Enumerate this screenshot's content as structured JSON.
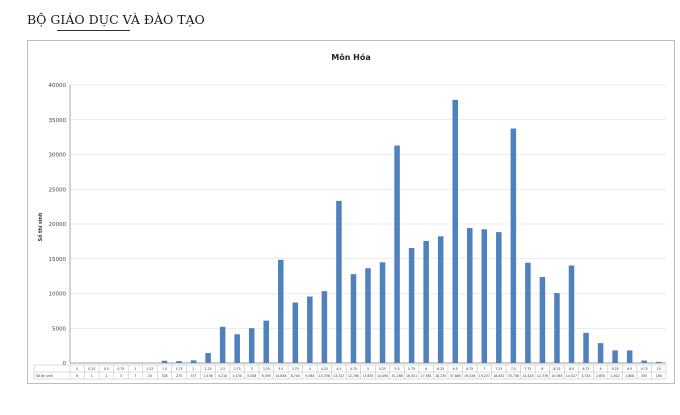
{
  "header": {
    "text": "BỘ GIÁO DỤC VÀ ĐÀO TẠO"
  },
  "chart_data": {
    "type": "bar",
    "title": "Môn Hóa",
    "ylabel": "Số thí sinh",
    "ylim": [
      0,
      40000
    ],
    "yticks": [
      0,
      5000,
      10000,
      15000,
      20000,
      25000,
      30000,
      35000,
      40000
    ],
    "grid": true,
    "bar_color": "#4f81bd",
    "row_labels": [
      "",
      "Số thí sinh"
    ],
    "categories": [
      "0",
      "0.25",
      "0.5",
      "0.75",
      "1",
      "1.25",
      "1.5",
      "1.75",
      "2",
      "2.25",
      "2.5",
      "2.75",
      "3",
      "3.25",
      "3.5",
      "3.75",
      "4",
      "4.25",
      "4.5",
      "4.75",
      "5",
      "5.25",
      "5.5",
      "5.75",
      "6",
      "6.25",
      "6.5",
      "6.75",
      "7",
      "7.25",
      "7.5",
      "7.75",
      "8",
      "8.25",
      "8.5",
      "8.75",
      "9",
      "9.25",
      "9.5",
      "9.75",
      "10"
    ],
    "values": [
      6,
      1,
      2,
      3,
      7,
      20,
      328,
      270,
      377,
      1436,
      5210,
      4130,
      5008,
      6095,
      14848,
      8700,
      9564,
      10338,
      23327,
      12780,
      13635,
      14490,
      31286,
      16551,
      17561,
      18230,
      37865,
      19426,
      19237,
      18832,
      33738,
      14428,
      12376,
      10063,
      14027,
      4334,
      2855,
      1812,
      1808,
      350,
      160
    ]
  }
}
